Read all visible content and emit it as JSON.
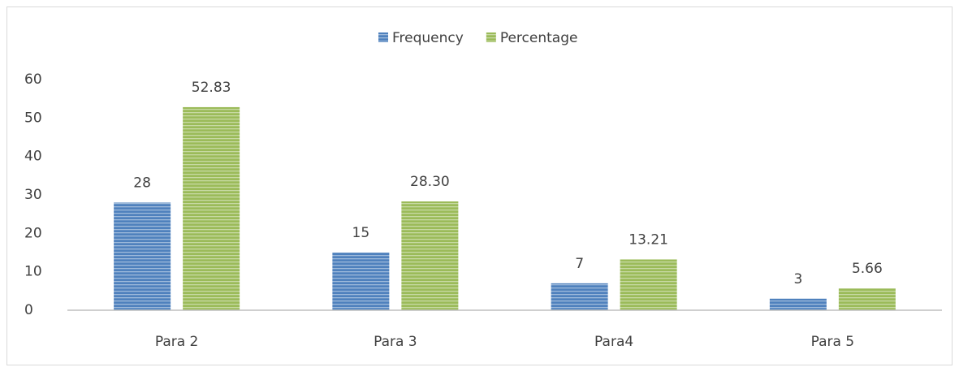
{
  "chart_data": {
    "type": "bar",
    "categories": [
      "Para 2",
      "Para 3",
      "Para4",
      "Para 5"
    ],
    "series": [
      {
        "name": "Frequency",
        "color": "#4f81bd",
        "values": [
          28,
          15,
          7,
          3
        ]
      },
      {
        "name": "Percentage",
        "color": "#9bbb59",
        "values": [
          52.83,
          28.3,
          13.21,
          5.66
        ],
        "value_labels": [
          "52.83",
          "28.30",
          "13.21",
          "5.66"
        ]
      }
    ],
    "ylim": [
      0,
      60
    ],
    "yticks": [
      0,
      10,
      20,
      30,
      40,
      50,
      60
    ],
    "grid": false,
    "legend": "top"
  }
}
